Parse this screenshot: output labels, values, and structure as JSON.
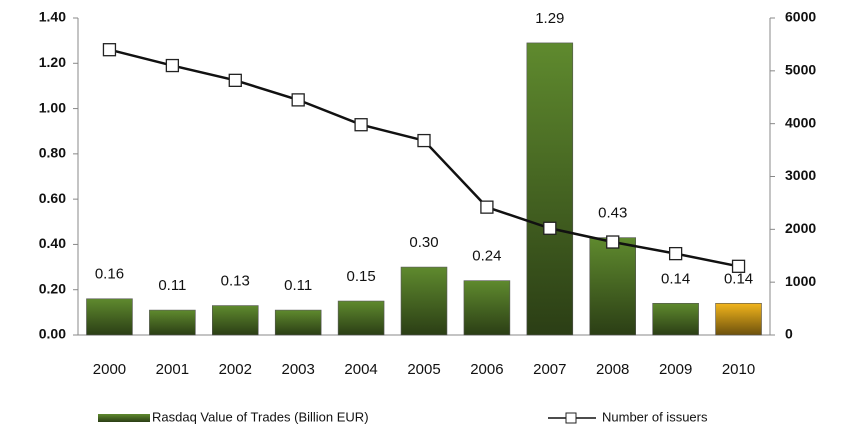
{
  "chart_data": {
    "type": "bar",
    "categories": [
      "2000",
      "2001",
      "2002",
      "2003",
      "2004",
      "2005",
      "2006",
      "2007",
      "2008",
      "2009",
      "2010"
    ],
    "series": [
      {
        "name": "Rasdaq Value of Trades (Billion EUR)",
        "type": "bar",
        "color": "#5f8a2e",
        "colors": [
          "#5f8a2e",
          "#5f8a2e",
          "#5f8a2e",
          "#5f8a2e",
          "#5f8a2e",
          "#5f8a2e",
          "#5f8a2e",
          "#5f8a2e",
          "#5f8a2e",
          "#5f8a2e",
          "#f2b51c"
        ],
        "values": [
          0.16,
          0.11,
          0.13,
          0.11,
          0.15,
          0.3,
          0.24,
          1.29,
          0.43,
          0.14,
          0.14
        ],
        "value_labels": [
          "0.16",
          "0.11",
          "0.13",
          "0.11",
          "0.15",
          "0.30",
          "0.24",
          "1.29",
          "0.43",
          "0.14",
          "0.14"
        ]
      },
      {
        "name": "Number of issuers",
        "type": "line",
        "axis": "y2",
        "color": "#111111",
        "values": [
          5400,
          5100,
          4820,
          4450,
          3980,
          3680,
          2420,
          2020,
          1760,
          1540,
          1300
        ]
      }
    ],
    "ylim": [
      0,
      1.4
    ],
    "yticks": [
      {
        "value": 0,
        "label": "0.00"
      },
      {
        "value": 0.2,
        "label": "0.20"
      },
      {
        "value": 0.4,
        "label": "0.40"
      },
      {
        "value": 0.6,
        "label": "0.60"
      },
      {
        "value": 0.8,
        "label": "0.80"
      },
      {
        "value": 1.0,
        "label": "1.00"
      },
      {
        "value": 1.2,
        "label": "1.20"
      },
      {
        "value": 1.4,
        "label": "1.40"
      }
    ],
    "y2lim": [
      0,
      6000
    ],
    "y2ticks": [
      0,
      1000,
      2000,
      3000,
      4000,
      5000,
      6000
    ],
    "legend": "bottom"
  }
}
